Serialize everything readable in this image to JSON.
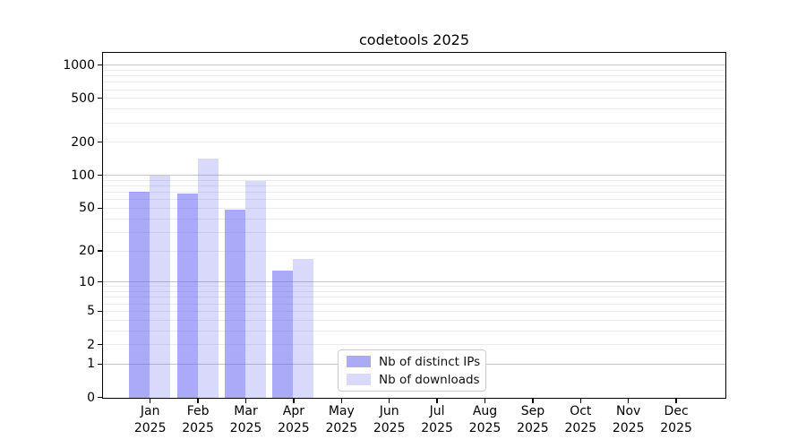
{
  "title": "codetools 2025",
  "chart_data": {
    "type": "bar",
    "title": "codetools 2025",
    "categories": [
      "Jan",
      "Feb",
      "Mar",
      "Apr",
      "May",
      "Jun",
      "Jul",
      "Aug",
      "Sep",
      "Oct",
      "Nov",
      "Dec"
    ],
    "year_label": "2025",
    "series": [
      {
        "name": "Nb of distinct IPs",
        "color": "#aaaaf9",
        "fill_color": "rgba(105,105,245,0.57)",
        "values": [
          72,
          69,
          49,
          13,
          null,
          null,
          null,
          null,
          null,
          null,
          null,
          null
        ]
      },
      {
        "name": "Nb of downloads",
        "color": "#dadaf9",
        "fill_color": "rgba(105,105,245,0.25)",
        "values": [
          100,
          144,
          90,
          17,
          null,
          null,
          null,
          null,
          null,
          null,
          null,
          null
        ]
      }
    ],
    "y_scale": "log1p",
    "y_tick_labels": [
      "1000",
      "500",
      "200",
      "100",
      "50",
      "20",
      "10",
      "5",
      "2",
      "1",
      "0"
    ],
    "y_ticks": [
      1000,
      500,
      200,
      100,
      50,
      20,
      10,
      5,
      2,
      1,
      0
    ],
    "y_major_gridlines": [
      1,
      10,
      100,
      1000
    ],
    "y_minor_gridlines": [
      2,
      3,
      4,
      5,
      6,
      7,
      8,
      9,
      20,
      30,
      40,
      50,
      60,
      70,
      80,
      90,
      200,
      300,
      400,
      500,
      600,
      700,
      800,
      900
    ],
    "ylim": [
      0,
      1200
    ],
    "grid": true,
    "legend_position": "lower center-left"
  },
  "colors": {
    "background": "#ffffff",
    "spine": "#000000",
    "major_gridline": "#c6c6c6",
    "minor_gridline": "#ebebeb",
    "text": "#111111",
    "legend_border": "#cccccc"
  }
}
